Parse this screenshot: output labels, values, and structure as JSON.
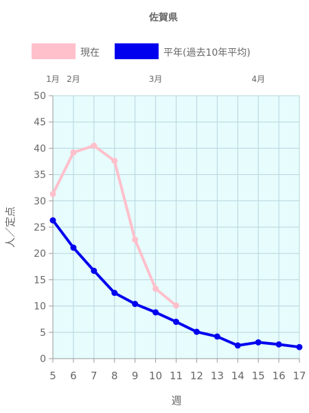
{
  "chart_data": {
    "type": "line",
    "title": "佐賀県",
    "xlabel": "週",
    "ylabel": "人／定点",
    "x": [
      5,
      6,
      7,
      8,
      9,
      10,
      11,
      12,
      13,
      14,
      15,
      16,
      17
    ],
    "xlim": [
      5,
      17
    ],
    "ylim": [
      0,
      50
    ],
    "yticks": [
      0,
      5,
      10,
      15,
      20,
      25,
      30,
      35,
      40,
      45,
      50
    ],
    "grid": true,
    "legend_position": "top",
    "plot_background": "#e6fcfd",
    "grid_color": "#b7d4dc",
    "months": [
      {
        "label": "1月",
        "x": 5
      },
      {
        "label": "2月",
        "x": 6
      },
      {
        "label": "3月",
        "x": 10
      },
      {
        "label": "4月",
        "x": 15
      }
    ],
    "series": [
      {
        "name": "現在",
        "color": "#ffc0cb",
        "values": [
          31.3,
          39.2,
          40.5,
          37.6,
          22.6,
          13.3,
          10.1,
          null,
          null,
          null,
          null,
          null,
          null
        ]
      },
      {
        "name": "平年(過去10年平均)",
        "color": "#0000ee",
        "values": [
          26.3,
          21.1,
          16.7,
          12.5,
          10.4,
          8.8,
          7.0,
          5.1,
          4.2,
          2.5,
          3.1,
          2.7,
          2.2
        ]
      }
    ]
  }
}
